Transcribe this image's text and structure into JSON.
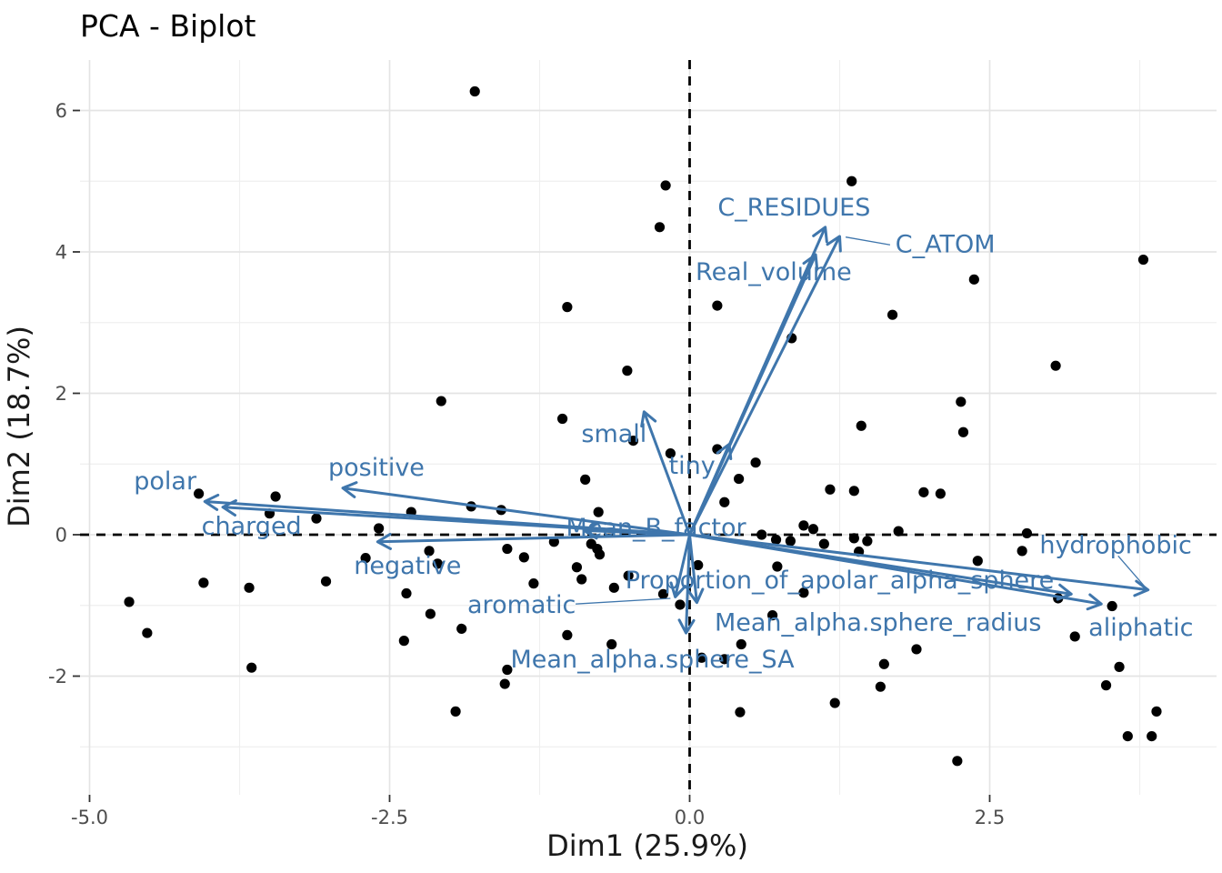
{
  "title": "PCA - Biplot",
  "colors": {
    "vector": "#3F76AC",
    "point": "#000000",
    "grid_major": "#E4E4E4",
    "grid_minor": "#EFEFEF",
    "reference_line": "#000000",
    "tick_text": "#4D4D4D",
    "axis_title_text": "#1A1A1A",
    "title_text": "#000000",
    "background": "#FFFFFF"
  },
  "chart_data": {
    "type": "scatter",
    "subtype": "pca-biplot",
    "title": "PCA - Biplot",
    "xlabel": "Dim1 (25.9%)",
    "ylabel": "Dim2 (18.7%)",
    "xlim": [
      -5.08,
      4.39
    ],
    "ylim": [
      -3.67,
      6.71
    ],
    "grid": true,
    "legend": "none",
    "x_ticks": {
      "values": [
        -5.0,
        -2.5,
        0.0,
        2.5
      ],
      "labels": [
        "-5.0",
        "-2.5",
        "0.0",
        "2.5"
      ]
    },
    "y_ticks": {
      "values": [
        -2,
        0,
        2,
        4,
        6
      ],
      "labels": [
        "-2",
        "0",
        "2",
        "4",
        "6"
      ]
    },
    "x_minor": [
      -3.75,
      -1.25,
      1.25,
      3.75
    ],
    "y_minor": [
      -3,
      -1,
      1,
      3,
      5
    ],
    "reference_lines": {
      "x": 0,
      "y": 0,
      "style": "dashed"
    },
    "points": [
      [
        -1.79,
        6.27
      ],
      [
        -0.2,
        4.94
      ],
      [
        1.35,
        5.0
      ],
      [
        -0.25,
        4.35
      ],
      [
        3.78,
        3.89
      ],
      [
        2.37,
        3.61
      ],
      [
        0.23,
        3.24
      ],
      [
        -1.02,
        3.22
      ],
      [
        1.69,
        3.11
      ],
      [
        0.85,
        2.78
      ],
      [
        3.05,
        2.39
      ],
      [
        -0.52,
        2.32
      ],
      [
        -2.07,
        1.89
      ],
      [
        2.26,
        1.88
      ],
      [
        -1.06,
        1.64
      ],
      [
        1.43,
        1.54
      ],
      [
        2.28,
        1.45
      ],
      [
        -0.47,
        1.33
      ],
      [
        0.23,
        1.21
      ],
      [
        -0.16,
        1.15
      ],
      [
        0.55,
        1.02
      ],
      [
        -0.87,
        0.78
      ],
      [
        0.41,
        0.79
      ],
      [
        1.17,
        0.64
      ],
      [
        1.37,
        0.62
      ],
      [
        1.95,
        0.6
      ],
      [
        2.09,
        0.58
      ],
      [
        -4.09,
        0.58
      ],
      [
        -3.45,
        0.54
      ],
      [
        0.29,
        0.46
      ],
      [
        -3.5,
        0.3
      ],
      [
        -3.11,
        0.23
      ],
      [
        -2.32,
        0.32
      ],
      [
        -2.59,
        0.09
      ],
      [
        -1.82,
        0.4
      ],
      [
        -1.57,
        0.35
      ],
      [
        -0.76,
        0.32
      ],
      [
        1.74,
        0.05
      ],
      [
        0.95,
        0.13
      ],
      [
        1.03,
        0.08
      ],
      [
        2.81,
        0.02
      ],
      [
        0.6,
        0.0
      ],
      [
        0.72,
        -0.07
      ],
      [
        0.84,
        -0.09
      ],
      [
        1.12,
        -0.13
      ],
      [
        1.37,
        -0.05
      ],
      [
        1.48,
        -0.09
      ],
      [
        -1.13,
        -0.1
      ],
      [
        -1.52,
        -0.2
      ],
      [
        -1.38,
        -0.32
      ],
      [
        -0.82,
        -0.13
      ],
      [
        -0.77,
        -0.2
      ],
      [
        -0.75,
        -0.28
      ],
      [
        -2.7,
        -0.33
      ],
      [
        -2.17,
        -0.23
      ],
      [
        -2.1,
        -0.41
      ],
      [
        1.41,
        -0.24
      ],
      [
        2.77,
        -0.23
      ],
      [
        2.4,
        -0.37
      ],
      [
        -0.94,
        -0.46
      ],
      [
        0.07,
        -0.43
      ],
      [
        0.73,
        -0.45
      ],
      [
        -4.05,
        -0.68
      ],
      [
        -3.67,
        -0.75
      ],
      [
        -3.03,
        -0.66
      ],
      [
        -2.36,
        -0.83
      ],
      [
        -4.67,
        -0.95
      ],
      [
        -1.3,
        -0.69
      ],
      [
        -0.9,
        -0.63
      ],
      [
        -0.63,
        -0.75
      ],
      [
        -0.51,
        -0.58
      ],
      [
        -0.22,
        -0.84
      ],
      [
        -0.08,
        -0.99
      ],
      [
        0.95,
        -0.82
      ],
      [
        0.69,
        -1.14
      ],
      [
        3.07,
        -0.9
      ],
      [
        3.52,
        -1.01
      ],
      [
        -2.16,
        -1.12
      ],
      [
        -4.52,
        -1.39
      ],
      [
        -1.9,
        -1.33
      ],
      [
        -2.38,
        -1.5
      ],
      [
        -1.02,
        -1.42
      ],
      [
        -0.65,
        -1.55
      ],
      [
        0.1,
        -1.74
      ],
      [
        0.29,
        -1.76
      ],
      [
        0.43,
        -1.55
      ],
      [
        -3.65,
        -1.88
      ],
      [
        -1.52,
        -1.91
      ],
      [
        1.89,
        -1.62
      ],
      [
        1.62,
        -1.83
      ],
      [
        3.21,
        -1.44
      ],
      [
        3.58,
        -1.87
      ],
      [
        -1.54,
        -2.11
      ],
      [
        -1.95,
        -2.5
      ],
      [
        0.42,
        -2.51
      ],
      [
        1.21,
        -2.38
      ],
      [
        1.59,
        -2.15
      ],
      [
        3.47,
        -2.13
      ],
      [
        3.89,
        -2.5
      ],
      [
        3.65,
        -2.85
      ],
      [
        3.85,
        -2.85
      ],
      [
        2.23,
        -3.2
      ]
    ],
    "vectors": [
      {
        "label": "C_RESIDUES",
        "tip": [
          1.13,
          4.35
        ],
        "label_pos": [
          0.87,
          4.63
        ]
      },
      {
        "label": "C_ATOM",
        "tip": [
          1.25,
          4.22
        ],
        "label_pos": [
          2.13,
          4.11
        ],
        "leader": [
          [
            1.3,
            4.21
          ],
          [
            1.67,
            4.1
          ]
        ]
      },
      {
        "label": "Real_volume",
        "tip": [
          1.05,
          3.96
        ],
        "label_pos": [
          0.7,
          3.72
        ]
      },
      {
        "label": "small",
        "tip": [
          -0.38,
          1.74
        ],
        "label_pos": [
          -0.63,
          1.43
        ]
      },
      {
        "label": "tiny",
        "tip": [
          0.33,
          1.28
        ],
        "label_pos": [
          0.02,
          0.98
        ]
      },
      {
        "label": "positive",
        "tip": [
          -2.89,
          0.66
        ],
        "label_pos": [
          -2.61,
          0.95
        ]
      },
      {
        "label": "polar",
        "tip": [
          -4.04,
          0.47
        ],
        "label_pos": [
          -4.37,
          0.76
        ]
      },
      {
        "label": "charged",
        "tip": [
          -3.89,
          0.39
        ],
        "label_pos": [
          -3.65,
          0.12
        ]
      },
      {
        "label": "negative",
        "tip": [
          -2.6,
          -0.1
        ],
        "label_pos": [
          -2.35,
          -0.44
        ]
      },
      {
        "label": "Mean_B_factor",
        "tip": [
          -0.88,
          0.06
        ],
        "label_pos": [
          -0.28,
          0.1
        ]
      },
      {
        "label": "aromatic",
        "tip": [
          -0.12,
          -0.88
        ],
        "label_pos": [
          -1.4,
          -0.99
        ],
        "leader": [
          [
            -0.95,
            -0.98
          ],
          [
            -0.16,
            -0.9
          ]
        ]
      },
      {
        "label": "Proportion_of_apolar_alpha_sphere",
        "tip": [
          3.18,
          -0.84
        ],
        "label_pos": [
          1.25,
          -0.64
        ]
      },
      {
        "label": "Mean_alpha.sphere_radius",
        "tip": [
          0.06,
          -0.96
        ],
        "label_pos": [
          1.57,
          -1.24
        ]
      },
      {
        "label": "Mean_alpha.sphere_SA",
        "tip": [
          -0.03,
          -1.39
        ],
        "label_pos": [
          -0.31,
          -1.76
        ]
      },
      {
        "label": "hydrophobic",
        "tip": [
          3.82,
          -0.78
        ],
        "label_pos": [
          3.55,
          -0.15
        ],
        "leader": [
          [
            3.57,
            -0.3
          ],
          [
            3.79,
            -0.73
          ]
        ]
      },
      {
        "label": "aliphatic",
        "tip": [
          3.43,
          -0.98
        ],
        "label_pos": [
          3.76,
          -1.31
        ]
      }
    ]
  }
}
